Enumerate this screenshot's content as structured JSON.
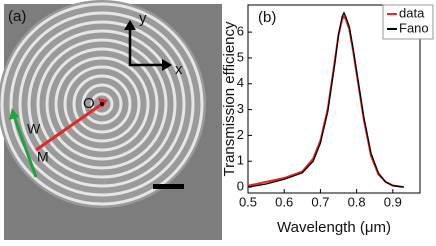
{
  "panel_a": {
    "label": "(a)",
    "axis_y": "y",
    "axis_x": "x",
    "origin": "O",
    "width_label": "W",
    "point_label": "M"
  },
  "chart_data": {
    "type": "line",
    "panel_label": "(b)",
    "x_label": "Wavelength (μm)",
    "y_label": "Transmission efficiency",
    "x": [
      0.5,
      0.55,
      0.6,
      0.65,
      0.68,
      0.7,
      0.72,
      0.74,
      0.75,
      0.76,
      0.765,
      0.77,
      0.78,
      0.79,
      0.8,
      0.82,
      0.84,
      0.86,
      0.88,
      0.9,
      0.93
    ],
    "series": [
      {
        "name": "data",
        "color": "#e8262a",
        "values": [
          0.05,
          0.2,
          0.35,
          0.6,
          1.1,
          1.8,
          3.0,
          4.9,
          5.9,
          6.5,
          6.6,
          6.5,
          6.1,
          5.3,
          4.4,
          2.6,
          1.2,
          0.5,
          0.2,
          0.06,
          0.0
        ]
      },
      {
        "name": "Fano",
        "color": "#000000",
        "values": [
          0.0,
          0.12,
          0.3,
          0.55,
          1.0,
          1.7,
          2.9,
          4.8,
          5.9,
          6.6,
          6.75,
          6.6,
          6.2,
          5.4,
          4.5,
          2.7,
          1.3,
          0.55,
          0.2,
          0.05,
          0.0
        ]
      }
    ],
    "xlim": [
      0.5,
      0.975
    ],
    "ylim": [
      -0.23,
      7.05
    ],
    "xticks": [
      0.5,
      0.6,
      0.7,
      0.8,
      0.9
    ],
    "yticks": [
      0,
      1,
      2,
      3,
      4,
      5,
      6
    ],
    "legend": "top-right"
  }
}
